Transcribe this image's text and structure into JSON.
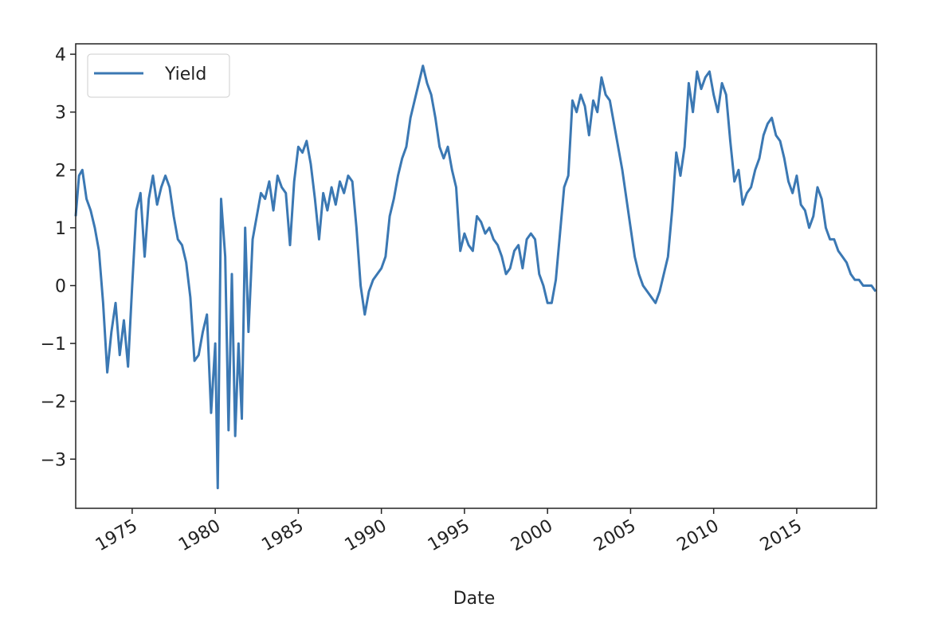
{
  "chart_data": {
    "type": "line",
    "xlabel": "Date",
    "x": [
      1971.6,
      1971.8,
      1972.0,
      1972.25,
      1972.5,
      1972.75,
      1973.0,
      1973.25,
      1973.5,
      1973.75,
      1974.0,
      1974.25,
      1974.5,
      1974.75,
      1975.0,
      1975.25,
      1975.5,
      1975.75,
      1976.0,
      1976.25,
      1976.5,
      1976.75,
      1977.0,
      1977.25,
      1977.5,
      1977.75,
      1978.0,
      1978.25,
      1978.5,
      1978.75,
      1979.0,
      1979.25,
      1979.5,
      1979.75,
      1980.0,
      1980.15,
      1980.35,
      1980.6,
      1980.8,
      1981.0,
      1981.2,
      1981.4,
      1981.6,
      1981.8,
      1982.0,
      1982.25,
      1982.5,
      1982.75,
      1983.0,
      1983.25,
      1983.5,
      1983.75,
      1984.0,
      1984.25,
      1984.5,
      1984.75,
      1985.0,
      1985.25,
      1985.5,
      1985.75,
      1986.0,
      1986.25,
      1986.5,
      1986.75,
      1987.0,
      1987.25,
      1987.5,
      1987.75,
      1988.0,
      1988.25,
      1988.5,
      1988.75,
      1989.0,
      1989.25,
      1989.5,
      1989.75,
      1990.0,
      1990.25,
      1990.5,
      1990.75,
      1991.0,
      1991.25,
      1991.5,
      1991.75,
      1992.0,
      1992.25,
      1992.5,
      1992.75,
      1993.0,
      1993.25,
      1993.5,
      1993.75,
      1994.0,
      1994.25,
      1994.5,
      1994.75,
      1995.0,
      1995.25,
      1995.5,
      1995.75,
      1996.0,
      1996.25,
      1996.5,
      1996.75,
      1997.0,
      1997.25,
      1997.5,
      1997.75,
      1998.0,
      1998.25,
      1998.5,
      1998.75,
      1999.0,
      1999.25,
      1999.5,
      1999.75,
      2000.0,
      2000.25,
      2000.5,
      2000.75,
      2001.0,
      2001.25,
      2001.5,
      2001.75,
      2002.0,
      2002.25,
      2002.5,
      2002.75,
      2003.0,
      2003.25,
      2003.5,
      2003.75,
      2004.0,
      2004.25,
      2004.5,
      2004.75,
      2005.0,
      2005.25,
      2005.5,
      2005.75,
      2006.0,
      2006.25,
      2006.5,
      2006.75,
      2007.0,
      2007.25,
      2007.5,
      2007.75,
      2008.0,
      2008.25,
      2008.5,
      2008.75,
      2009.0,
      2009.25,
      2009.5,
      2009.75,
      2010.0,
      2010.25,
      2010.5,
      2010.75,
      2011.0,
      2011.25,
      2011.5,
      2011.75,
      2012.0,
      2012.25,
      2012.5,
      2012.75,
      2013.0,
      2013.25,
      2013.5,
      2013.75,
      2014.0,
      2014.25,
      2014.5,
      2014.75,
      2015.0,
      2015.25,
      2015.5,
      2015.75,
      2016.0,
      2016.25,
      2016.5,
      2016.75,
      2017.0,
      2017.25,
      2017.5,
      2017.75,
      2018.0,
      2018.25,
      2018.5,
      2018.75,
      2019.0,
      2019.5,
      2019.75
    ],
    "series": [
      {
        "name": "Yield",
        "color": "#3b78b3",
        "values": [
          1.2,
          1.9,
          2.0,
          1.5,
          1.3,
          1.0,
          0.6,
          -0.3,
          -1.5,
          -0.8,
          -0.3,
          -1.2,
          -0.6,
          -1.4,
          0.0,
          1.3,
          1.6,
          0.5,
          1.5,
          1.9,
          1.4,
          1.7,
          1.9,
          1.7,
          1.2,
          0.8,
          0.7,
          0.4,
          -0.2,
          -1.3,
          -1.2,
          -0.8,
          -0.5,
          -2.2,
          -1.0,
          -3.5,
          1.5,
          0.5,
          -2.5,
          0.2,
          -2.6,
          -1.0,
          -2.3,
          1.0,
          -0.8,
          0.8,
          1.2,
          1.6,
          1.5,
          1.8,
          1.3,
          1.9,
          1.7,
          1.6,
          0.7,
          1.8,
          2.4,
          2.3,
          2.5,
          2.1,
          1.5,
          0.8,
          1.6,
          1.3,
          1.7,
          1.4,
          1.8,
          1.6,
          1.9,
          1.8,
          1.0,
          0.0,
          -0.5,
          -0.1,
          0.1,
          0.2,
          0.3,
          0.5,
          1.2,
          1.5,
          1.9,
          2.2,
          2.4,
          2.9,
          3.2,
          3.5,
          3.8,
          3.5,
          3.3,
          2.9,
          2.4,
          2.2,
          2.4,
          2.0,
          1.7,
          0.6,
          0.9,
          0.7,
          0.6,
          1.2,
          1.1,
          0.9,
          1.0,
          0.8,
          0.7,
          0.5,
          0.2,
          0.3,
          0.6,
          0.7,
          0.3,
          0.8,
          0.9,
          0.8,
          0.2,
          0.0,
          -0.3,
          -0.3,
          0.1,
          0.9,
          1.7,
          1.9,
          3.2,
          3.0,
          3.3,
          3.1,
          2.6,
          3.2,
          3.0,
          3.6,
          3.3,
          3.2,
          2.8,
          2.4,
          2.0,
          1.5,
          1.0,
          0.5,
          0.2,
          0.0,
          -0.1,
          -0.2,
          -0.3,
          -0.1,
          0.2,
          0.5,
          1.3,
          2.3,
          1.9,
          2.4,
          3.5,
          3.0,
          3.7,
          3.4,
          3.6,
          3.7,
          3.3,
          3.0,
          3.5,
          3.3,
          2.5,
          1.8,
          2.0,
          1.4,
          1.6,
          1.7,
          2.0,
          2.2,
          2.6,
          2.8,
          2.9,
          2.6,
          2.5,
          2.2,
          1.8,
          1.6,
          1.9,
          1.4,
          1.3,
          1.0,
          1.2,
          1.7,
          1.5,
          1.0,
          0.8,
          0.8,
          0.6,
          0.5,
          0.4,
          0.2,
          0.1,
          0.1,
          0.0,
          0.0,
          -0.1
        ]
      }
    ],
    "xlim": [
      1971.6,
      2019.8
    ],
    "xticks": [
      1975,
      1980,
      1985,
      1990,
      1995,
      2000,
      2005,
      2010,
      2015
    ],
    "ylim": [
      -3.85,
      4.18
    ],
    "yticks": [
      {
        "value": -3,
        "label": "−3"
      },
      {
        "value": -2,
        "label": "−2"
      },
      {
        "value": -1,
        "label": "−1"
      },
      0,
      1,
      2,
      3,
      4
    ],
    "legend": "upper left"
  }
}
